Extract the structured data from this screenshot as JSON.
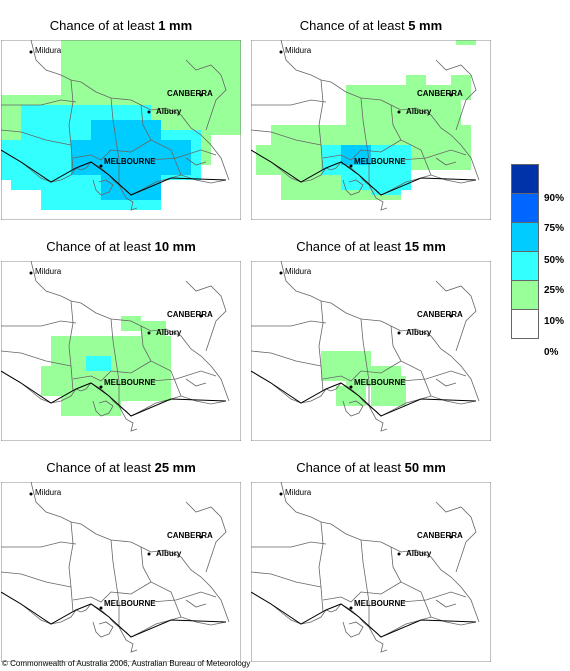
{
  "panels": [
    {
      "title_prefix": "Chance of at least",
      "amount": "1 mm"
    },
    {
      "title_prefix": "Chance of at least",
      "amount": "5 mm"
    },
    {
      "title_prefix": "Chance of at least",
      "amount": "10 mm"
    },
    {
      "title_prefix": "Chance of at least",
      "amount": "15 mm"
    },
    {
      "title_prefix": "Chance of at least",
      "amount": "25 mm"
    },
    {
      "title_prefix": "Chance of at least",
      "amount": "50 mm"
    }
  ],
  "places": {
    "mildura": "Mildura",
    "canberra": "CANBERRA",
    "albury": "Albury",
    "melbourne": "MELBOURNE"
  },
  "legend": {
    "labels": [
      "90%",
      "75%",
      "50%",
      "25%",
      "10%",
      "0%"
    ],
    "colors": [
      "#0033aa",
      "#0066ff",
      "#00ccff",
      "#33ffff",
      "#99ff99",
      "#ffffff"
    ]
  },
  "footer": "© Commonwealth of Australia 2006, Australian Bureau of Meteorology"
}
